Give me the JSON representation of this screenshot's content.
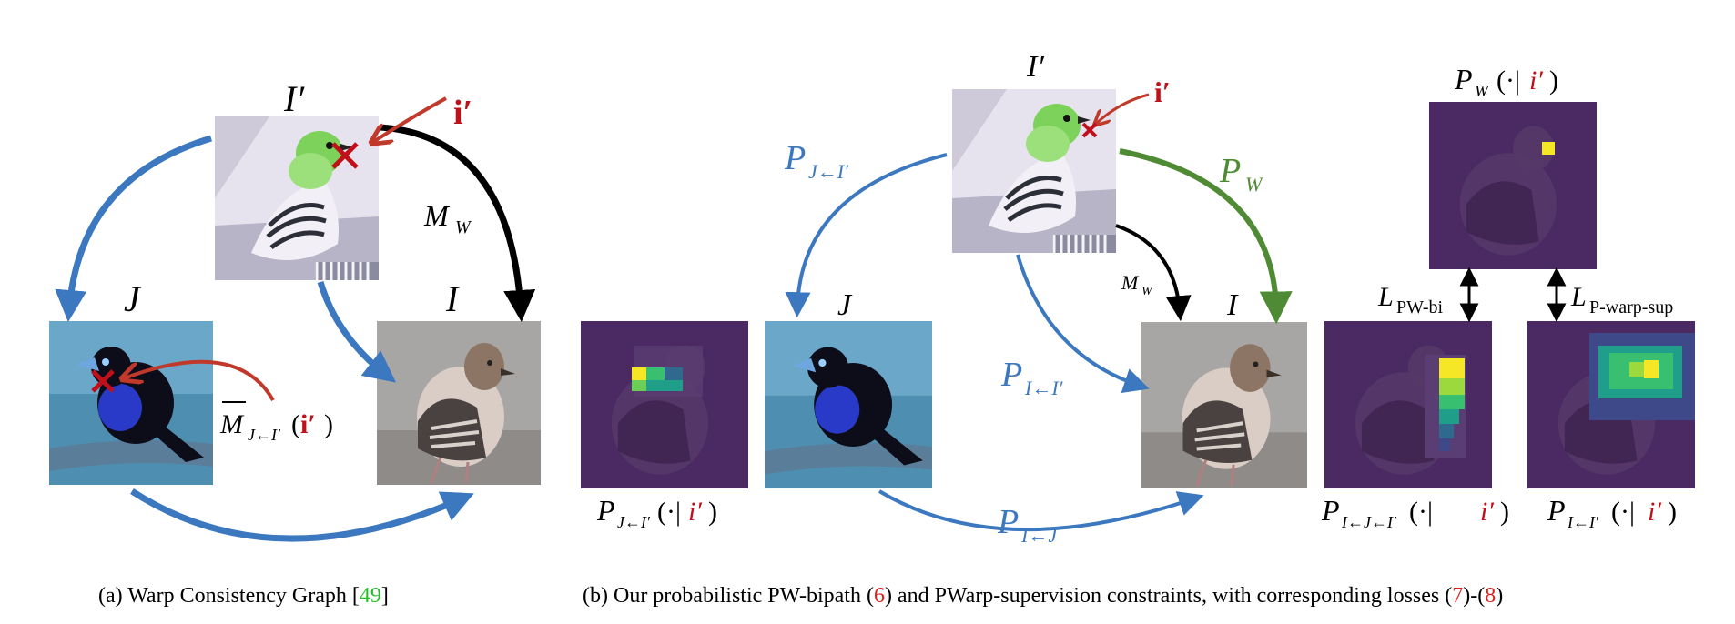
{
  "panel_a": {
    "caption_prefix": "(a) Warp Consistency Graph [",
    "caption_ref": "49",
    "caption_suffix": "]",
    "label_I_prime": "I′",
    "label_J": "J",
    "label_I": "I",
    "label_i_prime": "i′",
    "edge_M_W": "M",
    "edge_M_W_sub": "W",
    "edge_M_hat": "M",
    "edge_M_hat_sub": "J←I′",
    "edge_M_hat_arg_open": "(",
    "edge_M_hat_arg": "i′",
    "edge_M_hat_arg_close": ")"
  },
  "panel_b": {
    "caption_prefix": "(b) Our probabilistic PW-bipath (",
    "caption_ref1": "6",
    "caption_mid": ") and PWarp-supervision constraints, with corresponding losses (",
    "caption_ref2": "7",
    "caption_dash": ")-(",
    "caption_ref3": "8",
    "caption_suffix": ")",
    "label_I_prime": "I′",
    "label_J": "J",
    "label_I": "I",
    "label_i_prime": "i′",
    "edge_P_J_Iprime": "P",
    "edge_P_J_Iprime_sub": "J←I′",
    "edge_P_W": "P",
    "edge_P_W_sub": "W",
    "edge_M_W": "M",
    "edge_M_W_sub": "W",
    "edge_P_I_Iprime": "P",
    "edge_P_I_Iprime_sub": "I←I′",
    "edge_P_I_J": "P",
    "edge_P_I_J_sub": "I←J",
    "map_PW_title": "P",
    "map_PW_sub": "W",
    "map_PW_arg": "(·|",
    "map_PW_arg_i": "i′",
    "map_PW_arg_close": ")",
    "map_left_label": "P",
    "map_left_sub": "J←I′",
    "map_left_arg": "(·|",
    "map_left_arg_i": "i′",
    "map_left_arg_close": ")",
    "map_mid_label": "P",
    "map_mid_sub": "I←J←I′",
    "map_mid_arg": "(·|",
    "map_mid_arg_i": "i′",
    "map_mid_arg_close": ")",
    "map_right_label": "P",
    "map_right_sub": "I←I′",
    "map_right_arg": "(·|",
    "map_right_arg_i": "i′",
    "map_right_arg_close": ")",
    "loss_bi": "L",
    "loss_bi_sub": "PW-bi",
    "loss_sup": "L",
    "loss_sup_sub": "P-warp-sup"
  },
  "colors": {
    "blue_arrow": "#3b78c0",
    "green_arrow": "#4f8a34",
    "black_arrow": "#000000",
    "red_arrow": "#c0392b",
    "red_text": "#c0101a",
    "ref_green": "#22c022",
    "ref_red": "#e0201a",
    "heatmap_bg": "#4b2a63",
    "viridis_yellow": "#f5e626",
    "viridis_green": "#38c070",
    "viridis_teal": "#1f9e89",
    "viridis_blue": "#30698e"
  }
}
